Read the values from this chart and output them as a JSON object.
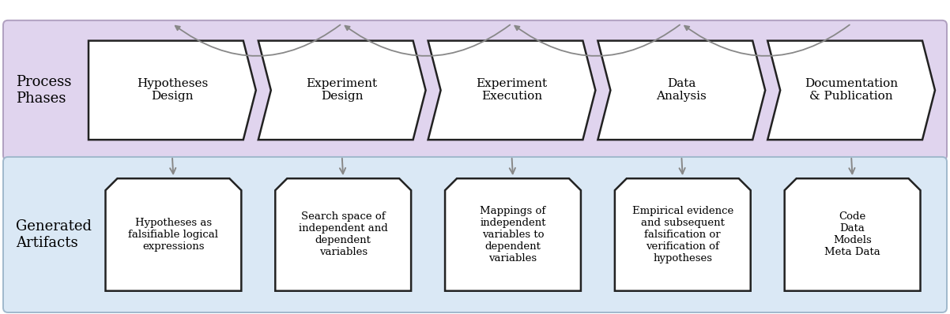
{
  "fig_width": 12.02,
  "fig_height": 3.98,
  "dpi": 100,
  "top_band_color": "#e0d4ee",
  "bottom_band_color": "#dae8f5",
  "top_band_border": "#b0a0c0",
  "bottom_band_border": "#a0b8cc",
  "label_process": "Process\nPhases",
  "label_artifacts": "Generated\nArtifacts",
  "phases": [
    "Hypotheses\nDesign",
    "Experiment\nDesign",
    "Experiment\nExecution",
    "Data\nAnalysis",
    "Documentation\n& Publication"
  ],
  "artifacts": [
    "Hypotheses as\nfalsifiable logical\nexpressions",
    "Search space of\nindependent and\ndependent\nvariables",
    "Mappings of\nindependent\nvariables to\ndependent\nvariables",
    "Empirical evidence\nand subsequent\nfalsification or\nverification of\nhypotheses",
    "Code\nData\nModels\nMeta Data"
  ],
  "arrow_color": "#888888",
  "box_edge_color": "#222222",
  "font_size_label": 13,
  "font_size_box": 9.5,
  "font_size_phase": 11
}
